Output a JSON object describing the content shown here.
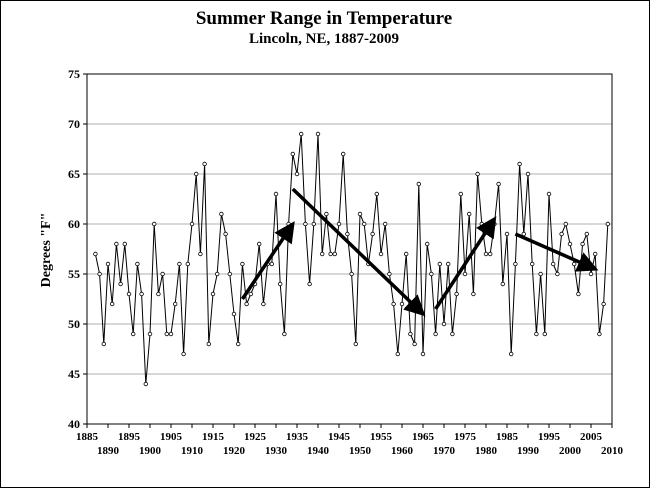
{
  "chart_data": {
    "type": "line",
    "title": "Summer Range in Temperature",
    "subtitle": "Lincoln, NE, 1887-2009",
    "xlabel": "",
    "ylabel": "Degrees \"F\"",
    "xlim": [
      1885,
      2010
    ],
    "ylim": [
      40,
      75
    ],
    "grid": "horizontal",
    "legend": "none",
    "x_ticks_upper": [
      "1885",
      "1895",
      "1905",
      "1915",
      "1925",
      "1935",
      "1945",
      "1955",
      "1965",
      "1975",
      "1985",
      "1995",
      "2005"
    ],
    "x_ticks_lower": [
      "1890",
      "1900",
      "1910",
      "1920",
      "1930",
      "1940",
      "1950",
      "1960",
      "1970",
      "1980",
      "1990",
      "2000",
      "2010"
    ],
    "y_ticks": [
      "40",
      "45",
      "50",
      "55",
      "60",
      "65",
      "70",
      "75"
    ],
    "colors": {
      "line": "#000000",
      "marker": "#ffffff",
      "grid": "#b0b0b0"
    },
    "series": [
      {
        "x": [
          1887,
          1888,
          1889,
          1890,
          1891,
          1892,
          1893,
          1894,
          1895,
          1896,
          1897,
          1898,
          1899,
          1900,
          1901,
          1902,
          1903,
          1904,
          1905,
          1906,
          1907,
          1908,
          1909,
          1910,
          1911,
          1912,
          1913,
          1914,
          1915,
          1916,
          1917,
          1918,
          1919,
          1920,
          1921,
          1922,
          1923,
          1924,
          1925,
          1926,
          1927,
          1928,
          1929,
          1930,
          1931,
          1932,
          1933,
          1934,
          1935,
          1936,
          1937,
          1938,
          1939,
          1940,
          1941,
          1942,
          1943,
          1944,
          1945,
          1946,
          1947,
          1948,
          1949,
          1950,
          1951,
          1952,
          1953,
          1954,
          1955,
          1956,
          1957,
          1958,
          1959,
          1960,
          1961,
          1962,
          1963,
          1964,
          1965,
          1966,
          1967,
          1968,
          1969,
          1970,
          1971,
          1972,
          1973,
          1974,
          1975,
          1976,
          1977,
          1978,
          1979,
          1980,
          1981,
          1982,
          1983,
          1984,
          1985,
          1986,
          1987,
          1988,
          1989,
          1990,
          1991,
          1992,
          1993,
          1994,
          1995,
          1996,
          1997,
          1998,
          1999,
          2000,
          2001,
          2002,
          2003,
          2004,
          2005,
          2006,
          2007,
          2008,
          2009
        ],
        "values": [
          57,
          55,
          48,
          56,
          52,
          58,
          54,
          58,
          53,
          49,
          56,
          53,
          44,
          49,
          60,
          53,
          55,
          49,
          49,
          52,
          56,
          47,
          56,
          60,
          65,
          57,
          66,
          48,
          53,
          55,
          61,
          59,
          55,
          51,
          48,
          56,
          52,
          53,
          54,
          58,
          52,
          56,
          56,
          63,
          54,
          49,
          60,
          67,
          65,
          69,
          60,
          54,
          60,
          69,
          57,
          61,
          57,
          57,
          60,
          67,
          59,
          55,
          48,
          61,
          60,
          56,
          59,
          63,
          57,
          60,
          55,
          52,
          47,
          52,
          57,
          49,
          48,
          64,
          47,
          58,
          55,
          49,
          56,
          50,
          56,
          49,
          53,
          63,
          55,
          61,
          53,
          65,
          60,
          57,
          57,
          60,
          64,
          54,
          59,
          47,
          56,
          66,
          59,
          65,
          56,
          49,
          55,
          49,
          63,
          56,
          55,
          59,
          60,
          58,
          56,
          53,
          58,
          59,
          55,
          57,
          49,
          52,
          60
        ]
      }
    ],
    "annotations": [
      {
        "type": "arrow",
        "from": [
          1922,
          52.5
        ],
        "to": [
          1934,
          60
        ]
      },
      {
        "type": "arrow",
        "from": [
          1934,
          63.5
        ],
        "to": [
          1965,
          51
        ]
      },
      {
        "type": "arrow",
        "from": [
          1968,
          51.5
        ],
        "to": [
          1982,
          60.5
        ]
      },
      {
        "type": "arrow",
        "from": [
          1987,
          59
        ],
        "to": [
          2006,
          55.5
        ]
      }
    ]
  }
}
